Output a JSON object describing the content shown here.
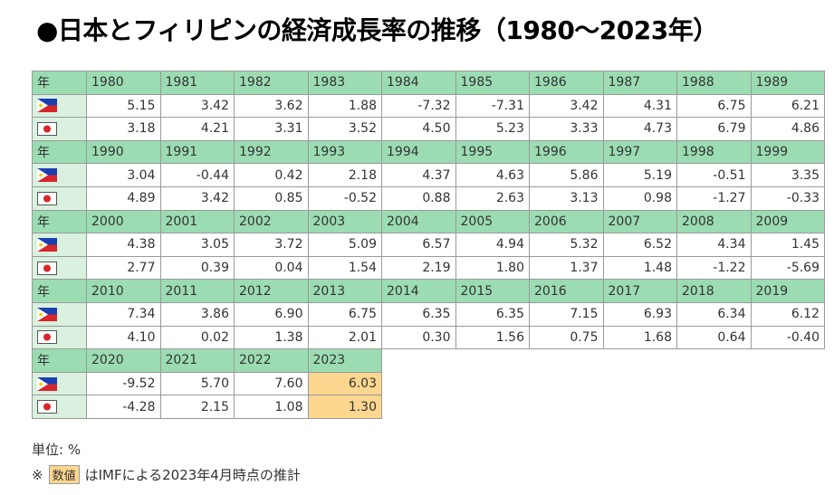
{
  "header": {
    "title": "●日本とフィリピンの経済成長率の推移（1980～2023年）"
  },
  "table": {
    "year_label": "年",
    "blocks": [
      {
        "years": [
          "1980",
          "1981",
          "1982",
          "1983",
          "1984",
          "1985",
          "1986",
          "1987",
          "1988",
          "1989"
        ],
        "philippines": [
          "5.15",
          "3.42",
          "3.62",
          "1.88",
          "-7.32",
          "-7.31",
          "3.42",
          "4.31",
          "6.75",
          "6.21"
        ],
        "japan": [
          "3.18",
          "4.21",
          "3.31",
          "3.52",
          "4.50",
          "5.23",
          "3.33",
          "4.73",
          "6.79",
          "4.86"
        ],
        "estimated_columns": []
      },
      {
        "years": [
          "1990",
          "1991",
          "1992",
          "1993",
          "1994",
          "1995",
          "1996",
          "1997",
          "1998",
          "1999"
        ],
        "philippines": [
          "3.04",
          "-0.44",
          "0.42",
          "2.18",
          "4.37",
          "4.63",
          "5.86",
          "5.19",
          "-0.51",
          "3.35"
        ],
        "japan": [
          "4.89",
          "3.42",
          "0.85",
          "-0.52",
          "0.88",
          "2.63",
          "3.13",
          "0.98",
          "-1.27",
          "-0.33"
        ],
        "estimated_columns": []
      },
      {
        "years": [
          "2000",
          "2001",
          "2002",
          "2003",
          "2004",
          "2005",
          "2006",
          "2007",
          "2008",
          "2009"
        ],
        "philippines": [
          "4.38",
          "3.05",
          "3.72",
          "5.09",
          "6.57",
          "4.94",
          "5.32",
          "6.52",
          "4.34",
          "1.45"
        ],
        "japan": [
          "2.77",
          "0.39",
          "0.04",
          "1.54",
          "2.19",
          "1.80",
          "1.37",
          "1.48",
          "-1.22",
          "-5.69"
        ],
        "estimated_columns": []
      },
      {
        "years": [
          "2010",
          "2011",
          "2012",
          "2013",
          "2014",
          "2015",
          "2016",
          "2017",
          "2018",
          "2019"
        ],
        "philippines": [
          "7.34",
          "3.86",
          "6.90",
          "6.75",
          "6.35",
          "6.35",
          "7.15",
          "6.93",
          "6.34",
          "6.12"
        ],
        "japan": [
          "4.10",
          "0.02",
          "1.38",
          "2.01",
          "0.30",
          "1.56",
          "0.75",
          "1.68",
          "0.64",
          "-0.40"
        ],
        "estimated_columns": []
      },
      {
        "years": [
          "2020",
          "2021",
          "2022",
          "2023"
        ],
        "philippines": [
          "-9.52",
          "5.70",
          "7.60",
          "6.03"
        ],
        "japan": [
          "-4.28",
          "2.15",
          "1.08",
          "1.30"
        ],
        "estimated_columns": [
          3
        ]
      }
    ]
  },
  "notes": {
    "unit": "単位: %",
    "mark": "※",
    "sample": "数値",
    "estimate": "はIMFによる2023年4月時点の推計"
  }
}
